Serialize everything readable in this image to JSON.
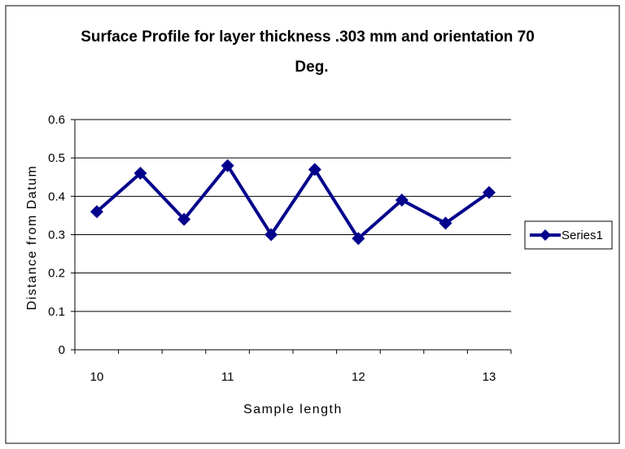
{
  "chart_data": {
    "type": "line",
    "title_line1": "Surface Profile for layer thickness .303 mm and  orientation 70",
    "title_line2": "Deg.",
    "xlabel": "Sample length",
    "ylabel": "Distance from Datum",
    "x_ticks": [
      "10",
      "11",
      "12",
      "13"
    ],
    "y_ticks": [
      "0",
      "0.1",
      "0.2",
      "0.3",
      "0.4",
      "0.5",
      "0.6"
    ],
    "ylim": [
      0,
      0.6
    ],
    "grid": "horizontal",
    "legend_position": "right",
    "series": [
      {
        "name": "Series1",
        "color": "#00008B",
        "x": [
          10.0,
          10.333,
          10.667,
          11.0,
          11.333,
          11.667,
          12.0,
          12.333,
          12.667,
          13.0
        ],
        "values": [
          0.36,
          0.46,
          0.34,
          0.48,
          0.3,
          0.47,
          0.29,
          0.39,
          0.33,
          0.41
        ]
      }
    ]
  }
}
